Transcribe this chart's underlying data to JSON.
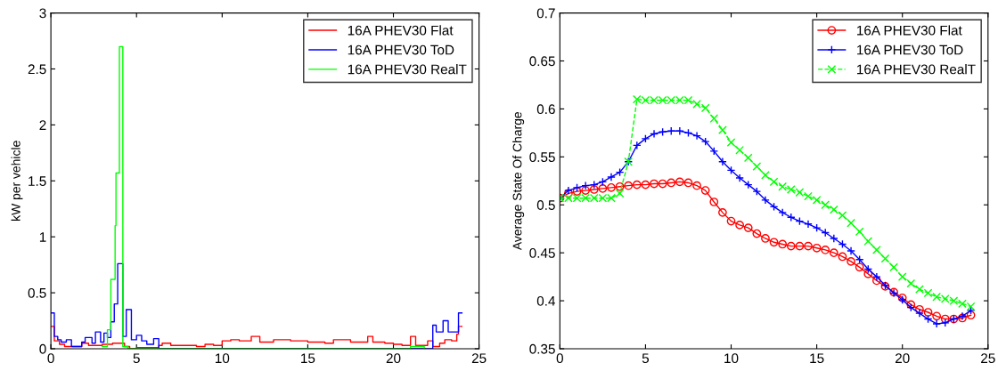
{
  "chart_data": [
    {
      "type": "step",
      "ylabel": "kW per vehicle",
      "xlim": [
        0,
        25
      ],
      "ylim": [
        0,
        3
      ],
      "xticks": [
        0,
        5,
        10,
        15,
        20,
        25
      ],
      "yticks": [
        0,
        0.5,
        1,
        1.5,
        2,
        2.5,
        3
      ],
      "grid": false,
      "legend": "top right",
      "marker": "none",
      "line_style": "solid",
      "series": [
        {
          "name": "16A PHEV30 Flat",
          "color": "#ff0000",
          "x": [
            0,
            0.2,
            0.5,
            0.8,
            1.8,
            2.2,
            3,
            3.6,
            4.3,
            4.6,
            5,
            6.3,
            6.5,
            7,
            8,
            8.5,
            9,
            9.5,
            10,
            10.5,
            11,
            11.7,
            12.2,
            13,
            13.5,
            14,
            15,
            16,
            16.5,
            17.5,
            18.5,
            18.8,
            19.5,
            20,
            20.5,
            21,
            21.3,
            22,
            22.3,
            22.7,
            23,
            23.4,
            23.7,
            23.8,
            24
          ],
          "values": [
            0.2,
            0.07,
            0.04,
            0.02,
            0.05,
            0.03,
            0.04,
            0.05,
            0.02,
            0.0,
            0.01,
            0.03,
            0.05,
            0.03,
            0.03,
            0.02,
            0.04,
            0.03,
            0.07,
            0.08,
            0.07,
            0.11,
            0.06,
            0.08,
            0.08,
            0.07,
            0.06,
            0.05,
            0.08,
            0.06,
            0.11,
            0.06,
            0.05,
            0.04,
            0.03,
            0.11,
            0.03,
            0.07,
            0.02,
            0.05,
            0.08,
            0.07,
            0.13,
            0.2,
            0.2
          ]
        },
        {
          "name": "16A PHEV30 ToD",
          "color": "#0000ff",
          "x": [
            0,
            0.2,
            0.4,
            0.6,
            0.9,
            1.2,
            1.8,
            2.0,
            2.4,
            2.6,
            2.9,
            3.1,
            3.3,
            3.5,
            3.7,
            3.9,
            4.2,
            4.4,
            4.7,
            5.0,
            5.3,
            5.6,
            6.0,
            6.3,
            22.3,
            22.5,
            22.9,
            23.2,
            23.8,
            24
          ],
          "values": [
            0.32,
            0.11,
            0.08,
            0.06,
            0.08,
            0.02,
            0.06,
            0.1,
            0.05,
            0.15,
            0.06,
            0.14,
            0.1,
            0.24,
            0.4,
            0.76,
            0.11,
            0.35,
            0.08,
            0.12,
            0.07,
            0.04,
            0.09,
            0.0,
            0.21,
            0.15,
            0.25,
            0.15,
            0.32,
            0.32
          ]
        },
        {
          "name": "16A PHEV30 RealT",
          "color": "#00ff00",
          "x": [
            3.0,
            3.3,
            3.5,
            3.75,
            3.8,
            4.0,
            4.2,
            4.5,
            21,
            21.8
          ],
          "values": [
            0.02,
            0.17,
            0.62,
            1.1,
            1.57,
            2.7,
            0.02,
            0,
            0.02,
            0
          ]
        }
      ]
    },
    {
      "type": "line",
      "ylabel": "Average State Of Charge",
      "xlim": [
        0,
        25
      ],
      "ylim": [
        0.35,
        0.7
      ],
      "xticks": [
        0,
        5,
        10,
        15,
        20,
        25
      ],
      "yticks": [
        0.35,
        0.4,
        0.45,
        0.5,
        0.55,
        0.6,
        0.65,
        0.7
      ],
      "grid": false,
      "legend": "top right",
      "x": [
        0,
        0.5,
        1,
        1.5,
        2,
        2.5,
        3,
        3.5,
        4,
        4.5,
        5,
        5.5,
        6,
        6.5,
        7,
        7.5,
        8,
        8.5,
        9,
        9.5,
        10,
        10.5,
        11,
        11.5,
        12,
        12.5,
        13,
        13.5,
        14,
        14.5,
        15,
        15.5,
        16,
        16.5,
        17,
        17.5,
        18,
        18.5,
        19,
        19.5,
        20,
        20.5,
        21,
        21.5,
        22,
        22.5,
        23,
        23.5,
        24
      ],
      "series": [
        {
          "name": "16A PHEV30 Flat",
          "color": "#ff0000",
          "marker": "circle",
          "line_style": "solid",
          "values": [
            0.507,
            0.512,
            0.514,
            0.515,
            0.516,
            0.517,
            0.518,
            0.519,
            0.52,
            0.521,
            0.521,
            0.522,
            0.522,
            0.523,
            0.524,
            0.523,
            0.52,
            0.515,
            0.503,
            0.492,
            0.483,
            0.479,
            0.476,
            0.47,
            0.465,
            0.461,
            0.459,
            0.457,
            0.457,
            0.457,
            0.455,
            0.453,
            0.45,
            0.446,
            0.441,
            0.435,
            0.428,
            0.421,
            0.415,
            0.409,
            0.403,
            0.396,
            0.391,
            0.388,
            0.384,
            0.381,
            0.381,
            0.382,
            0.385
          ]
        },
        {
          "name": "16A PHEV30 ToD",
          "color": "#0000ff",
          "marker": "cross",
          "line_style": "solid",
          "values": [
            0.507,
            0.515,
            0.518,
            0.52,
            0.521,
            0.524,
            0.529,
            0.534,
            0.545,
            0.562,
            0.569,
            0.574,
            0.576,
            0.577,
            0.577,
            0.575,
            0.572,
            0.566,
            0.556,
            0.545,
            0.536,
            0.528,
            0.521,
            0.514,
            0.505,
            0.498,
            0.492,
            0.487,
            0.483,
            0.48,
            0.476,
            0.471,
            0.465,
            0.459,
            0.452,
            0.443,
            0.433,
            0.425,
            0.416,
            0.408,
            0.401,
            0.393,
            0.387,
            0.381,
            0.376,
            0.377,
            0.381,
            0.384,
            0.39
          ]
        },
        {
          "name": "16A PHEV30 RealT",
          "color": "#00ff00",
          "marker": "x",
          "line_style": "dashed",
          "values": [
            0.507,
            0.507,
            0.507,
            0.507,
            0.507,
            0.507,
            0.507,
            0.512,
            0.545,
            0.61,
            0.609,
            0.609,
            0.609,
            0.609,
            0.609,
            0.609,
            0.605,
            0.601,
            0.59,
            0.578,
            0.565,
            0.557,
            0.549,
            0.54,
            0.531,
            0.524,
            0.519,
            0.516,
            0.513,
            0.509,
            0.505,
            0.5,
            0.495,
            0.489,
            0.481,
            0.472,
            0.462,
            0.453,
            0.444,
            0.435,
            0.425,
            0.418,
            0.412,
            0.408,
            0.404,
            0.402,
            0.4,
            0.397,
            0.394
          ]
        }
      ]
    }
  ]
}
